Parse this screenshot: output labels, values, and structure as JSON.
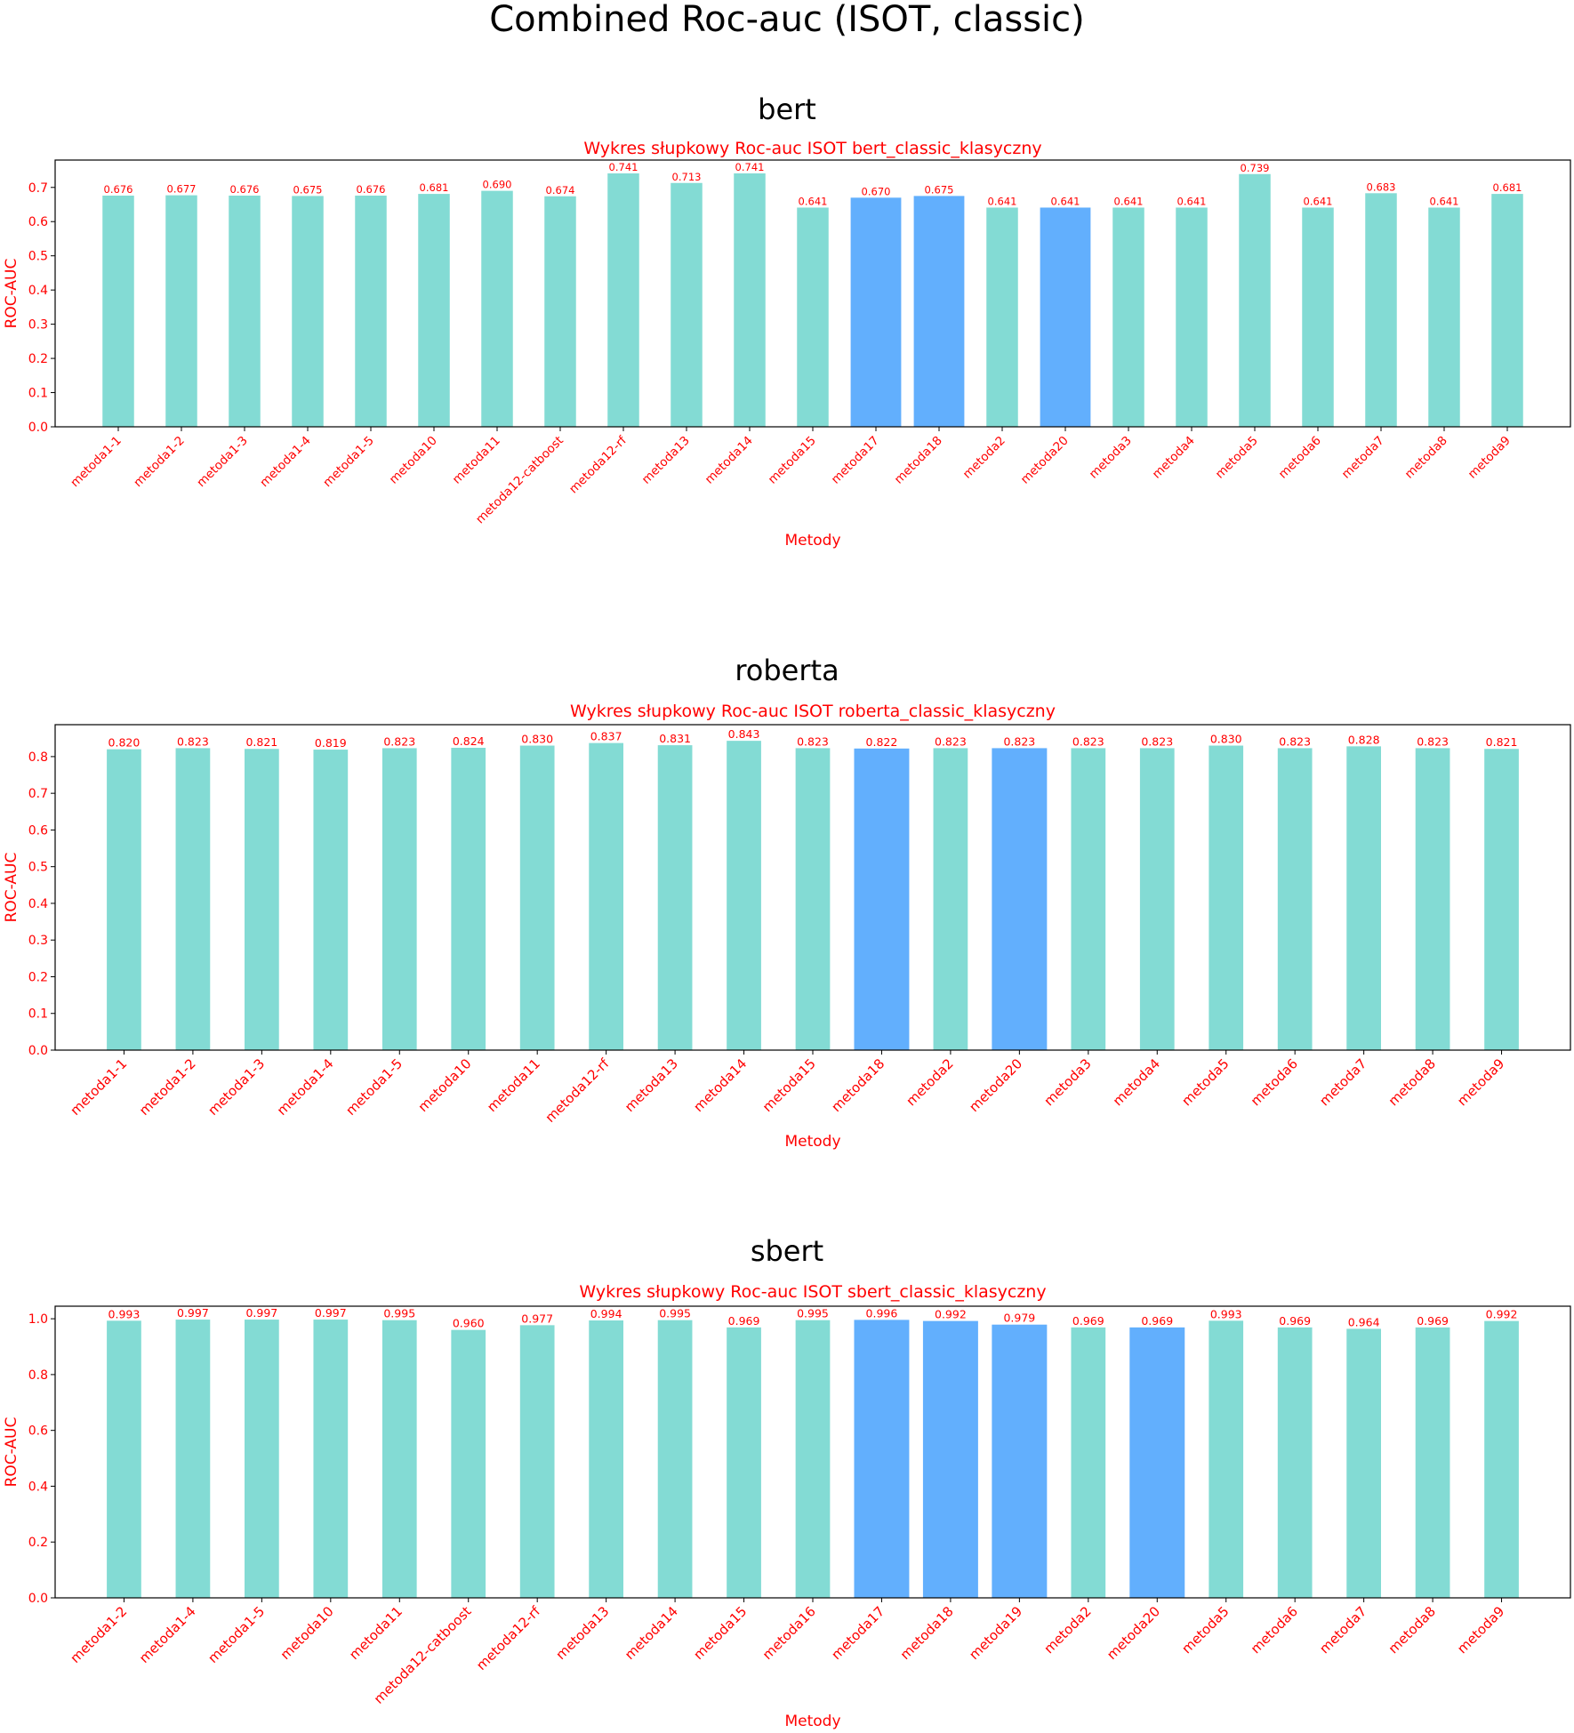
{
  "figure_title": "Combined Roc-auc (ISOT, classic)",
  "colors": {
    "normal_bar": "#83dbd4",
    "highlight_bar": "#62affd",
    "annotation": "#ff0000",
    "text": "#000000"
  },
  "chart_data": [
    {
      "type": "bar",
      "panel_title": "bert",
      "title": "Wykres słupkowy Roc-auc ISOT bert_classic_klasyczny",
      "xlabel": "Metody",
      "ylabel": "ROC-AUC",
      "ylim": [
        0,
        0.78
      ],
      "yticks": [
        "0.0",
        "0.1",
        "0.2",
        "0.3",
        "0.4",
        "0.5",
        "0.6",
        "0.7"
      ],
      "categories": [
        "metoda1-1",
        "metoda1-2",
        "metoda1-3",
        "metoda1-4",
        "metoda1-5",
        "metoda10",
        "metoda11",
        "metoda12-catboost",
        "metoda12-rf",
        "metoda13",
        "metoda14",
        "metoda15",
        "metoda17",
        "metoda18",
        "metoda2",
        "metoda20",
        "metoda3",
        "metoda4",
        "metoda5",
        "metoda6",
        "metoda7",
        "metoda8",
        "metoda9"
      ],
      "values": [
        0.676,
        0.677,
        0.676,
        0.675,
        0.676,
        0.681,
        0.69,
        0.674,
        0.741,
        0.713,
        0.741,
        0.641,
        0.67,
        0.675,
        0.641,
        0.641,
        0.641,
        0.641,
        0.739,
        0.641,
        0.683,
        0.641,
        0.681
      ],
      "labels": [
        "0.676",
        "0.677",
        "0.676",
        "0.675",
        "0.676",
        "0.681",
        "0.690",
        "0.674",
        "0.741",
        "0.713",
        "0.741",
        "0.641",
        "0.670",
        "0.675",
        "0.641",
        "0.641",
        "0.641",
        "0.641",
        "0.739",
        "0.641",
        "0.683",
        "0.641",
        "0.681"
      ],
      "highlighted": [
        "metoda17",
        "metoda18",
        "metoda20"
      ],
      "grid": false
    },
    {
      "type": "bar",
      "panel_title": "roberta",
      "title": "Wykres słupkowy Roc-auc ISOT roberta_classic_klasyczny",
      "xlabel": "Metody",
      "ylabel": "ROC-AUC",
      "ylim": [
        0,
        0.887
      ],
      "yticks": [
        "0.0",
        "0.1",
        "0.2",
        "0.3",
        "0.4",
        "0.5",
        "0.6",
        "0.7",
        "0.8"
      ],
      "categories": [
        "metoda1-1",
        "metoda1-2",
        "metoda1-3",
        "metoda1-4",
        "metoda1-5",
        "metoda10",
        "metoda11",
        "metoda12-rf",
        "metoda13",
        "metoda14",
        "metoda15",
        "metoda18",
        "metoda2",
        "metoda20",
        "metoda3",
        "metoda4",
        "metoda5",
        "metoda6",
        "metoda7",
        "metoda8",
        "metoda9"
      ],
      "values": [
        0.82,
        0.823,
        0.821,
        0.819,
        0.823,
        0.824,
        0.83,
        0.837,
        0.831,
        0.843,
        0.823,
        0.822,
        0.823,
        0.823,
        0.823,
        0.823,
        0.83,
        0.823,
        0.828,
        0.823,
        0.821
      ],
      "labels": [
        "0.820",
        "0.823",
        "0.821",
        "0.819",
        "0.823",
        "0.824",
        "0.830",
        "0.837",
        "0.831",
        "0.843",
        "0.823",
        "0.822",
        "0.823",
        "0.823",
        "0.823",
        "0.823",
        "0.830",
        "0.823",
        "0.828",
        "0.823",
        "0.821"
      ],
      "highlighted": [
        "metoda18",
        "metoda20"
      ],
      "grid": false
    },
    {
      "type": "bar",
      "panel_title": "sbert",
      "title": "Wykres słupkowy Roc-auc ISOT sbert_classic_klasyczny",
      "xlabel": "Metody",
      "ylabel": "ROC-AUC",
      "ylim": [
        0,
        1.045
      ],
      "yticks": [
        "0.0",
        "0.2",
        "0.4",
        "0.6",
        "0.8",
        "1.0"
      ],
      "categories": [
        "metoda1-2",
        "metoda1-4",
        "metoda1-5",
        "metoda10",
        "metoda11",
        "metoda12-catboost",
        "metoda12-rf",
        "metoda13",
        "metoda14",
        "metoda15",
        "metoda16",
        "metoda17",
        "metoda18",
        "metoda19",
        "metoda2",
        "metoda20",
        "metoda5",
        "metoda6",
        "metoda7",
        "metoda8",
        "metoda9"
      ],
      "values": [
        0.993,
        0.997,
        0.997,
        0.997,
        0.995,
        0.96,
        0.977,
        0.994,
        0.995,
        0.969,
        0.995,
        0.996,
        0.992,
        0.979,
        0.969,
        0.969,
        0.993,
        0.969,
        0.964,
        0.969,
        0.992
      ],
      "labels": [
        "0.993",
        "0.997",
        "0.997",
        "0.997",
        "0.995",
        "0.960",
        "0.977",
        "0.994",
        "0.995",
        "0.969",
        "0.995",
        "0.996",
        "0.992",
        "0.979",
        "0.969",
        "0.969",
        "0.993",
        "0.969",
        "0.964",
        "0.969",
        "0.992"
      ],
      "highlighted": [
        "metoda17",
        "metoda18",
        "metoda19",
        "metoda20"
      ],
      "grid": false
    }
  ]
}
